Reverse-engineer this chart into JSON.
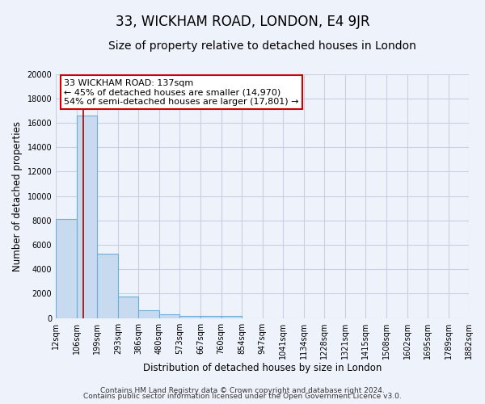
{
  "title": "33, WICKHAM ROAD, LONDON, E4 9JR",
  "subtitle": "Size of property relative to detached houses in London",
  "xlabel": "Distribution of detached houses by size in London",
  "ylabel": "Number of detached properties",
  "bar_values": [
    8100,
    16600,
    5300,
    1750,
    650,
    300,
    200,
    150,
    150
  ],
  "bar_edges": [
    12,
    106,
    199,
    293,
    386,
    480,
    573,
    667,
    760,
    854
  ],
  "xtick_labels": [
    "12sqm",
    "106sqm",
    "199sqm",
    "293sqm",
    "386sqm",
    "480sqm",
    "573sqm",
    "667sqm",
    "760sqm",
    "854sqm",
    "947sqm",
    "1041sqm",
    "1134sqm",
    "1228sqm",
    "1321sqm",
    "1415sqm",
    "1508sqm",
    "1602sqm",
    "1695sqm",
    "1789sqm",
    "1882sqm"
  ],
  "xtick_values": [
    12,
    106,
    199,
    293,
    386,
    480,
    573,
    667,
    760,
    854,
    947,
    1041,
    1134,
    1228,
    1321,
    1415,
    1508,
    1602,
    1695,
    1789,
    1882
  ],
  "xlim": [
    12,
    1882
  ],
  "ylim": [
    0,
    20000
  ],
  "yticks": [
    0,
    2000,
    4000,
    6000,
    8000,
    10000,
    12000,
    14000,
    16000,
    18000,
    20000
  ],
  "bar_color": "#c8daf0",
  "bar_edge_color": "#6baed6",
  "property_size": 137,
  "vline_color": "#aa0000",
  "annotation_line1": "33 WICKHAM ROAD: 137sqm",
  "annotation_line2": "← 45% of detached houses are smaller (14,970)",
  "annotation_line3": "54% of semi-detached houses are larger (17,801) →",
  "annotation_box_color": "#ffffff",
  "annotation_box_edge": "#cc0000",
  "footer_line1": "Contains HM Land Registry data © Crown copyright and database right 2024.",
  "footer_line2": "Contains public sector information licensed under the Open Government Licence v3.0.",
  "background_color": "#eef2fb",
  "plot_bg_color": "#eef2fb",
  "grid_color": "#c8cfe0",
  "title_fontsize": 12,
  "subtitle_fontsize": 10,
  "axis_label_fontsize": 8.5,
  "tick_fontsize": 7,
  "annotation_fontsize": 8,
  "footer_fontsize": 6.5
}
